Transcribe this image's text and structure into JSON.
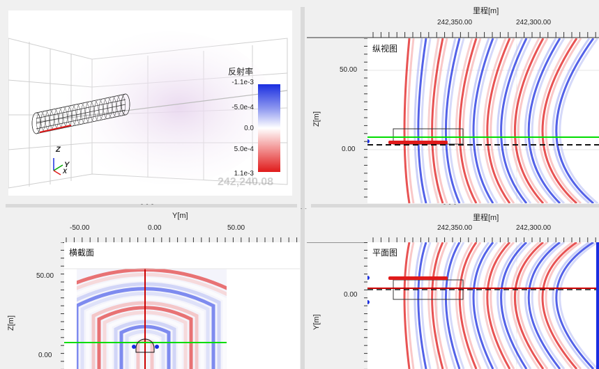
{
  "view3d": {
    "legend": {
      "title": "反射率",
      "ticks": [
        "-1.1e-3",
        "-5.0e-4",
        "0.0",
        "5.0e-4",
        "1.1e-3"
      ]
    },
    "axes": {
      "z": "Z",
      "y": "Y",
      "x": "X"
    },
    "watermark": "242,240.08"
  },
  "longitudinal": {
    "title": "纵视图",
    "x_axis_label": "里程[m]",
    "x_ticks": [
      "242,350.00",
      "242,300.00"
    ],
    "y_axis_label": "Z[m]",
    "y_ticks": [
      "50.00",
      "0.00"
    ]
  },
  "cross": {
    "title": "横截面",
    "x_axis_label": "Y[m]",
    "x_ticks": [
      "-50.00",
      "0.00",
      "50.00"
    ],
    "y_axis_label": "Z[m]",
    "y_ticks": [
      "50.00",
      "0.00"
    ]
  },
  "plan": {
    "title": "平面图",
    "x_axis_label": "里程[m]",
    "x_ticks": [
      "242,350.00",
      "242,300.00"
    ],
    "y_axis_label": "Y[m]",
    "y_ticks": [
      "0.00"
    ]
  },
  "splitters": {
    "grip": "- - -"
  },
  "colors": {
    "positive": "#e01a1a",
    "negative": "#1a2ee0",
    "green_line": "#00dd00",
    "red_line": "#cc0000"
  }
}
